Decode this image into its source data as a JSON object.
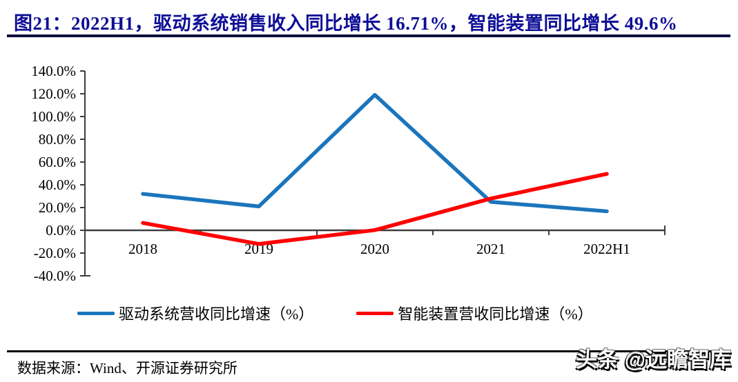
{
  "header": {
    "title": "图21：2022H1，驱动系统销售收入同比增长 16.71%，智能装置同比增长 49.6%"
  },
  "chart_data": {
    "type": "line",
    "categories": [
      "2018",
      "2019",
      "2020",
      "2021",
      "2022H1"
    ],
    "series": [
      {
        "name": "驱动系统营收同比增速（%）",
        "color": "#1b75bc",
        "values": [
          32.0,
          21.0,
          119.0,
          25.0,
          16.71
        ]
      },
      {
        "name": "智能装置营收同比增速（%）",
        "color": "#ff0000",
        "values": [
          6.5,
          -12.0,
          0.2,
          27.9,
          49.6
        ]
      }
    ],
    "ylim": [
      -40,
      140
    ],
    "y_tick_step": 20,
    "y_tick_labels": [
      "140.0%",
      "120.0%",
      "100.0%",
      "80.0%",
      "60.0%",
      "40.0%",
      "20.0%",
      "0.0%",
      "-20.0%",
      "-40.0%"
    ],
    "grid": false,
    "legend_position": "bottom"
  },
  "footer": {
    "source": "数据来源：Wind、开源证券研究所",
    "watermark": "头条 @远瞻智库"
  }
}
